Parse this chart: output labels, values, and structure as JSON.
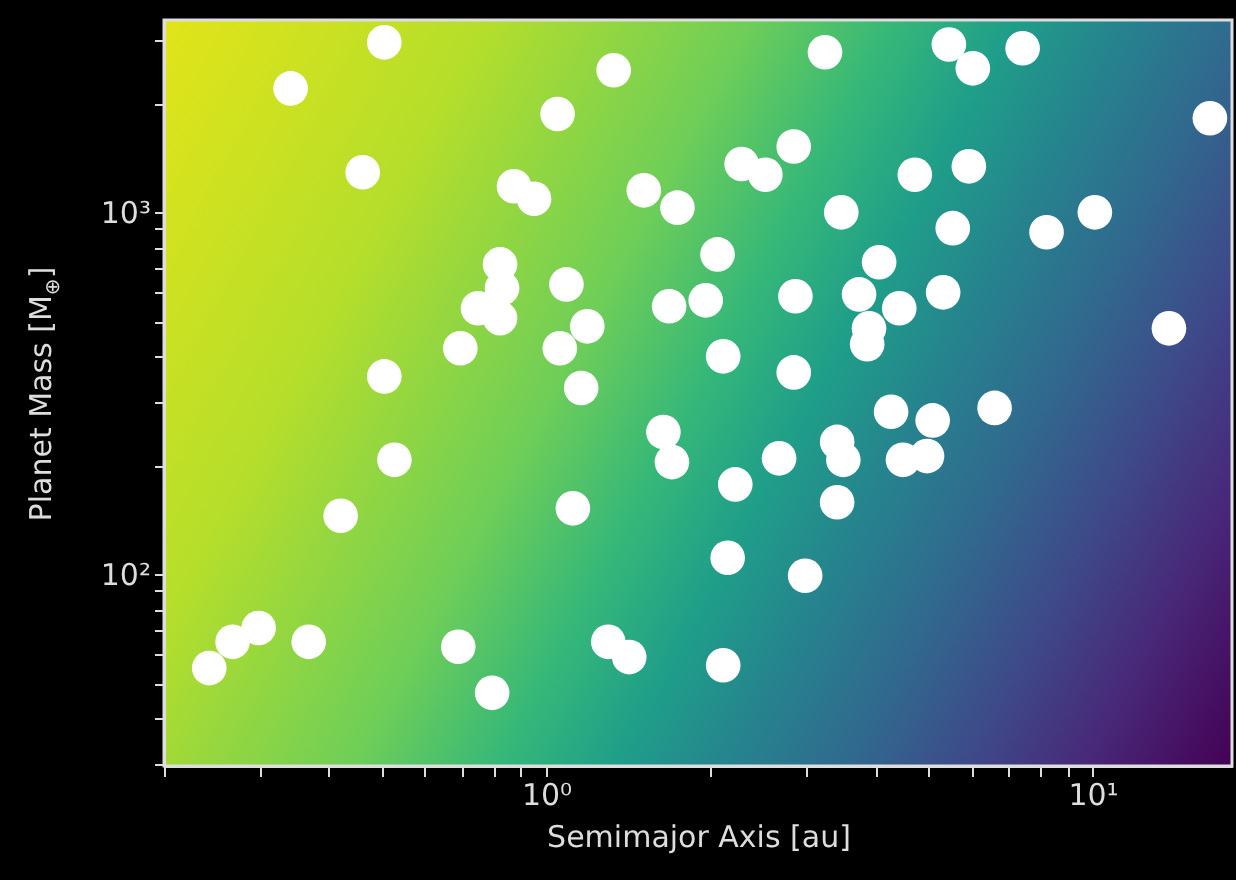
{
  "chart_data": {
    "type": "scatter",
    "xlabel": "Semimajor Axis [au]",
    "ylabel": "Planet Mass [M$_{⊕}$]",
    "log": "xy",
    "grid": false,
    "marker": "circle",
    "xlim": [
      0.2,
      18
    ],
    "ylim": [
      29.5,
      3400
    ],
    "xticks": [
      {
        "value": 0.2,
        "label": null
      },
      {
        "value": 0.3,
        "label": null
      },
      {
        "value": 0.4,
        "label": null
      },
      {
        "value": 0.5,
        "label": null
      },
      {
        "value": 0.6,
        "label": null
      },
      {
        "value": 0.7,
        "label": null
      },
      {
        "value": 0.8,
        "label": null
      },
      {
        "value": 0.9,
        "label": null
      },
      {
        "value": 1,
        "label": "10⁰"
      },
      {
        "value": 2,
        "label": null
      },
      {
        "value": 3,
        "label": null
      },
      {
        "value": 4,
        "label": null
      },
      {
        "value": 5,
        "label": null
      },
      {
        "value": 6,
        "label": null
      },
      {
        "value": 7,
        "label": null
      },
      {
        "value": 8,
        "label": null
      },
      {
        "value": 9,
        "label": null
      },
      {
        "value": 10,
        "label": "10¹"
      }
    ],
    "yticks": [
      {
        "value": 30,
        "label": null
      },
      {
        "value": 40,
        "label": null
      },
      {
        "value": 50,
        "label": null
      },
      {
        "value": 60,
        "label": null
      },
      {
        "value": 70,
        "label": null
      },
      {
        "value": 80,
        "label": null
      },
      {
        "value": 90,
        "label": null
      },
      {
        "value": 100,
        "label": "10²"
      },
      {
        "value": 200,
        "label": null
      },
      {
        "value": 300,
        "label": null
      },
      {
        "value": 400,
        "label": null
      },
      {
        "value": 500,
        "label": null
      },
      {
        "value": 600,
        "label": null
      },
      {
        "value": 700,
        "label": null
      },
      {
        "value": 800,
        "label": null
      },
      {
        "value": 900,
        "label": null
      },
      {
        "value": 1000,
        "label": "10³"
      },
      {
        "value": 2000,
        "label": null
      },
      {
        "value": 3000,
        "label": null
      }
    ],
    "series": [
      {
        "color": "#ffffff",
        "x": [
          0.242,
          0.267,
          0.298,
          0.368,
          0.421,
          0.528,
          0.691,
          0.797,
          1.12,
          1.3,
          1.42,
          2.11,
          2.15,
          2.98,
          1.64,
          1.7,
          2.22,
          2.67,
          3.41,
          3.5,
          3.41,
          4.28,
          5.1,
          4.5,
          4.98,
          6.62,
          0.341,
          0.506,
          0.462,
          0.874,
          0.951,
          1.05,
          1.33,
          1.51,
          0.824,
          0.831,
          0.751,
          0.824,
          0.697,
          1.09,
          1.19,
          1.06,
          1.16,
          0.506,
          3.24,
          5.46,
          6.04,
          7.45,
          16.4,
          2.28,
          2.52,
          2.84,
          1.74,
          4.73,
          5.94,
          3.47,
          2.06,
          5.55,
          8.24,
          10.1,
          1.96,
          2.86,
          1.68,
          3.74,
          4.07,
          4.43,
          5.33,
          3.9,
          3.87,
          2.11,
          2.84,
          13.8
        ],
        "values": [
          55,
          65,
          71,
          65,
          145,
          207,
          63,
          47,
          152,
          65,
          59,
          56,
          111,
          99,
          247,
          204,
          177,
          209,
          232,
          207,
          158,
          281,
          266,
          207,
          212,
          288,
          2200,
          2950,
          1290,
          1180,
          1090,
          1870,
          2470,
          1150,
          718,
          617,
          543,
          510,
          421,
          632,
          484,
          421,
          327,
          352,
          2770,
          2910,
          2500,
          2840,
          1820,
          1360,
          1270,
          1520,
          1030,
          1270,
          1340,
          1000,
          765,
          904,
          881,
          1000,
          571,
          586,
          550,
          593,
          728,
          543,
          601,
          478,
          432,
          400,
          361,
          478
        ]
      }
    ]
  }
}
